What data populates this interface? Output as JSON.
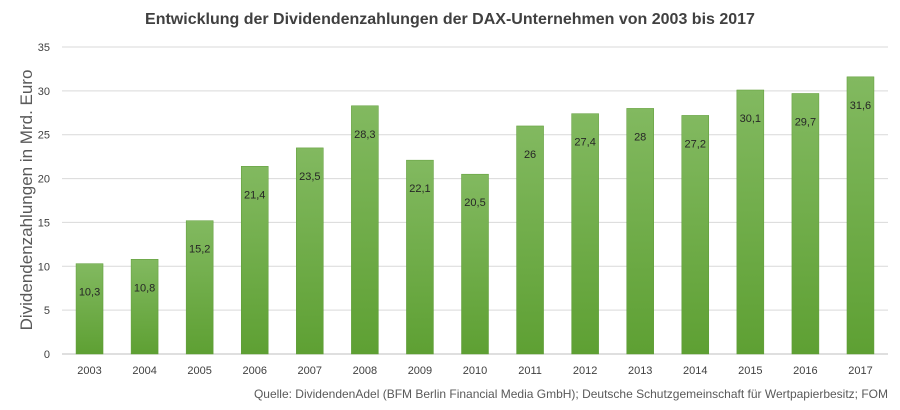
{
  "chart_data": {
    "type": "bar",
    "title": "Entwicklung der Dividendenzahlungen der DAX-Unternehmen von 2003 bis 2017",
    "xlabel": "",
    "ylabel": "Dividendenzahlungen in Mrd. Euro",
    "ylim": [
      0,
      35
    ],
    "yticks": [
      0,
      5,
      10,
      15,
      20,
      25,
      30,
      35
    ],
    "grid": true,
    "categories": [
      "2003",
      "2004",
      "2005",
      "2006",
      "2007",
      "2008",
      "2009",
      "2010",
      "2011",
      "2012",
      "2013",
      "2014",
      "2015",
      "2016",
      "2017"
    ],
    "values": [
      10.3,
      10.8,
      15.2,
      21.4,
      23.5,
      28.3,
      22.1,
      20.5,
      26,
      27.4,
      28,
      27.2,
      30.1,
      29.7,
      31.6
    ],
    "data_labels": [
      "10,3",
      "10,8",
      "15,2",
      "21,4",
      "23,5",
      "28,3",
      "22,1",
      "20,5",
      "26",
      "27,4",
      "28",
      "27,2",
      "30,1",
      "29,7",
      "31,6"
    ],
    "bar_color_top": "#82b960",
    "bar_color_bottom": "#5ea033",
    "source": "Quelle: DividendenAdel (BFM Berlin Financial Media GmbH); Deutsche Schutzgemeinschaft für Wertpapierbesitz; FOM"
  }
}
